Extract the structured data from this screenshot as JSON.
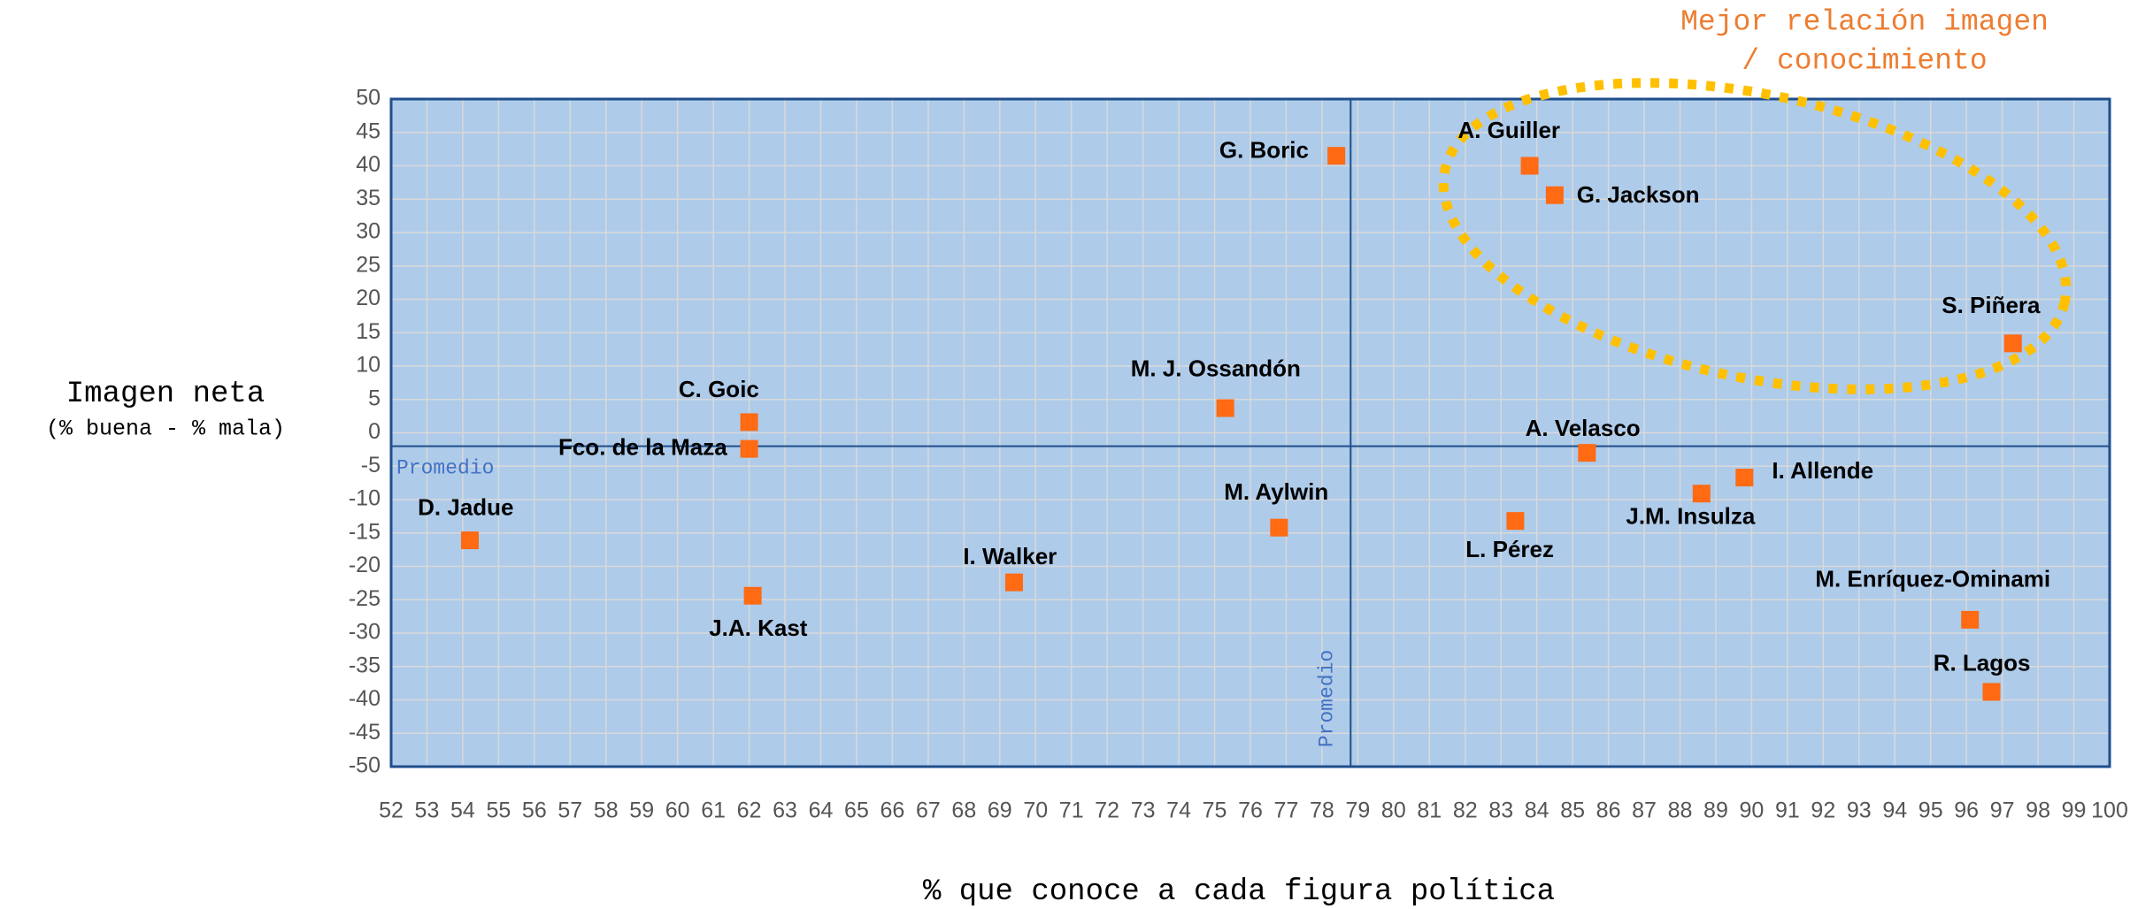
{
  "chart_data": {
    "type": "scatter",
    "y_label": [
      "Imagen neta",
      "(% buena - % mala)"
    ],
    "x_label": "% que conoce a cada figura política",
    "annotation": [
      "Mejor relación imagen",
      "/ conocimiento"
    ],
    "labels": [
      "G. Boric",
      "A. Guiller",
      "G. Jackson",
      "S. Piñera",
      "M. J. Ossandón",
      "C. Goic",
      "Fco. de la Maza",
      "A. Velasco",
      "I. Allende",
      "J.M. Insulza",
      "L. Pérez",
      "M. Aylwin",
      "D. Jadue",
      "I. Walker",
      "J.A. Kast",
      "M. Enríquez-Ominami",
      "R. Lagos"
    ],
    "x": [
      78.4,
      83.8,
      84.5,
      97.3,
      75.3,
      62.0,
      62.0,
      85.4,
      89.8,
      88.6,
      83.4,
      76.8,
      54.2,
      69.4,
      62.1,
      96.1,
      96.7
    ],
    "y": [
      41.5,
      40,
      35.6,
      13.4,
      3.7,
      1.6,
      -2.4,
      -3,
      -6.7,
      -9.1,
      -13.2,
      -14.2,
      -16.1,
      -22.4,
      -24.4,
      -28,
      -38.8
    ],
    "color": "#ff6a13",
    "average": {
      "label": "Promedio",
      "x": 78.8,
      "y": -2.0
    },
    "xlim": [
      52,
      100
    ],
    "xticks": [
      52,
      53,
      54,
      55,
      56,
      57,
      58,
      59,
      60,
      61,
      62,
      63,
      64,
      65,
      66,
      67,
      68,
      69,
      70,
      71,
      72,
      73,
      74,
      75,
      76,
      77,
      78,
      79,
      80,
      81,
      82,
      83,
      84,
      85,
      86,
      87,
      88,
      89,
      90,
      91,
      92,
      93,
      94,
      95,
      96,
      97,
      98,
      99,
      100
    ],
    "ylim": [
      -50,
      50
    ],
    "yticks": [
      -50,
      -45,
      -40,
      -35,
      -30,
      -25,
      -20,
      -15,
      -10,
      -5,
      0,
      5,
      10,
      15,
      20,
      25,
      30,
      35,
      40,
      45,
      50
    ],
    "grid": true
  }
}
